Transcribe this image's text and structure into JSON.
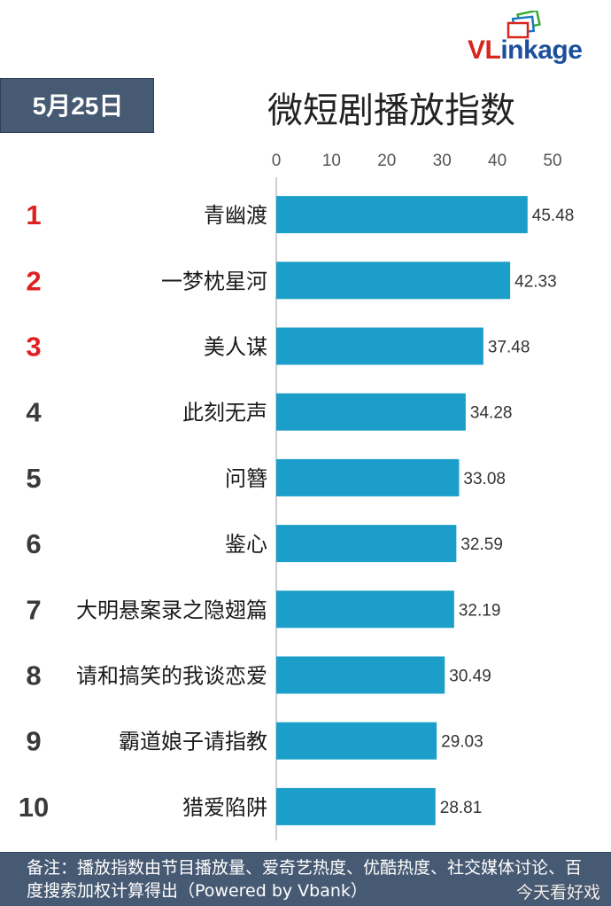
{
  "brand": {
    "logo_text": "VLinkage",
    "logo_colors": {
      "v_l": "#d7261e",
      "inkage": "#1c4f9c",
      "accent_red": "#d7261e",
      "accent_green": "#39a935",
      "accent_blue": "#1c78c0"
    }
  },
  "header": {
    "date_label": "5月25日",
    "badge_color": "#475a73"
  },
  "chart_data": {
    "type": "bar",
    "orientation": "horizontal",
    "title": "微短剧播放指数",
    "xlabel": "",
    "ylabel": "",
    "xlim": [
      0,
      50
    ],
    "xticks": [
      "0",
      "10",
      "20",
      "30",
      "40",
      "50"
    ],
    "grid": false,
    "legend": "none",
    "bar_color": "#1b9ec9",
    "ranks": [
      "1",
      "2",
      "3",
      "4",
      "5",
      "6",
      "7",
      "8",
      "9",
      "10"
    ],
    "rank_colors": [
      "#e02020",
      "#e02020",
      "#e02020",
      "#3a3a3a",
      "#3a3a3a",
      "#3a3a3a",
      "#3a3a3a",
      "#3a3a3a",
      "#3a3a3a",
      "#3a3a3a"
    ],
    "categories": [
      "青幽渡",
      "一梦枕星河",
      "美人谋",
      "此刻无声",
      "问簪",
      "鉴心",
      "大明悬案录之隐翅篇",
      "请和搞笑的我谈恋爱",
      "霸道娘子请指教",
      "猎爱陷阱"
    ],
    "values": [
      45.48,
      42.33,
      37.48,
      34.28,
      33.08,
      32.59,
      32.19,
      30.49,
      29.03,
      28.81
    ],
    "value_labels": [
      "45.48",
      "42.33",
      "37.48",
      "34.28",
      "33.08",
      "32.59",
      "32.19",
      "30.49",
      "29.03",
      "28.81"
    ]
  },
  "footer": {
    "note": "备注：播放指数由节目播放量、爱奇艺热度、优酷热度、社交媒体讨论、百度搜索加权计算得出（Powered by Vbank）",
    "watermark": "今天看好戏"
  }
}
